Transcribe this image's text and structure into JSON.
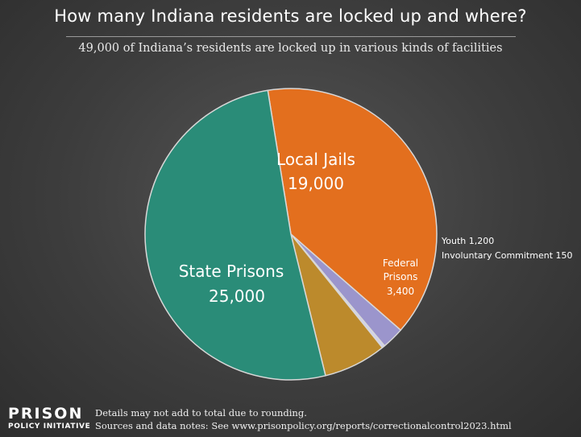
{
  "header": {
    "title": "How many Indiana residents are locked up and where?",
    "subtitle": "49,000 of Indiana’s residents are locked up in various kinds of facilities"
  },
  "chart_data": {
    "type": "pie",
    "total": 49000,
    "slices": [
      {
        "name": "Local Jails",
        "value": 19000,
        "value_label": "19,000",
        "color": "#e36f1e"
      },
      {
        "name": "Youth",
        "value": 1200,
        "value_label": "1,200",
        "color": "#9b95cc"
      },
      {
        "name": "Involuntary Commitment",
        "value": 150,
        "value_label": "150",
        "color": "#cdd0ee"
      },
      {
        "name": "Federal Prisons",
        "value": 3400,
        "value_label": "3,400",
        "color": "#bc8a2c"
      },
      {
        "name": "State Prisons",
        "value": 25000,
        "value_label": "25,000",
        "color": "#2a8c78"
      }
    ]
  },
  "labels": {
    "local_jails_name": "Local Jails",
    "local_jails_value": "19,000",
    "state_prisons_name": "State Prisons",
    "state_prisons_value": "25,000",
    "federal_line1": "Federal",
    "federal_line2": "Prisons",
    "federal_value": "3,400",
    "youth": "Youth 1,200",
    "involuntary": "Involuntary Commitment 150"
  },
  "footer": {
    "logo_line1": "PRISON",
    "logo_line2": "POLICY INITIATIVE",
    "note1": "Details may not add to total due to rounding.",
    "note2": "Sources and data notes: See www.prisonpolicy.org/reports/correctionalcontrol2023.html"
  }
}
